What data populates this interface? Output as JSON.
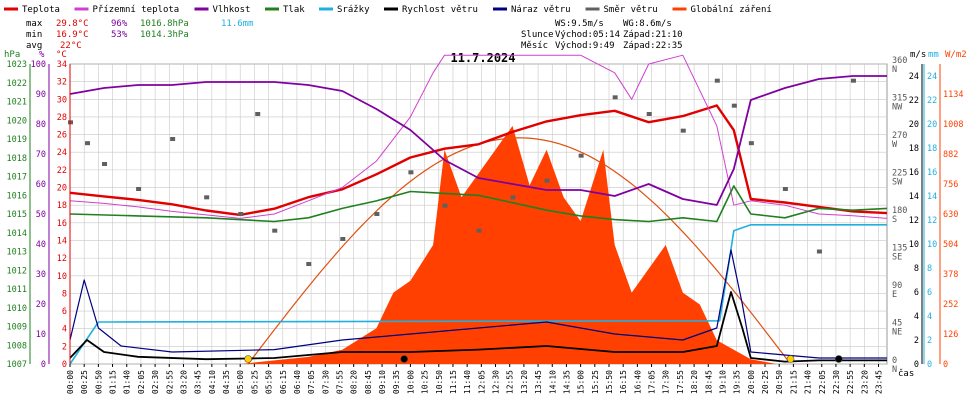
{
  "legend": [
    {
      "label": "Teplota",
      "color": "#e00000"
    },
    {
      "label": "Přízemní teplota",
      "color": "#d040d0"
    },
    {
      "label": "Vlhkost",
      "color": "#8000a0"
    },
    {
      "label": "Tlak",
      "color": "#208020"
    },
    {
      "label": "Srážky",
      "color": "#20b0e0"
    },
    {
      "label": "Rychlost větru",
      "color": "#000000"
    },
    {
      "label": "Náraz větru",
      "color": "#000080"
    },
    {
      "label": "Směr větru",
      "color": "#606060"
    },
    {
      "label": "Globální záření",
      "color": "#ff4000"
    }
  ],
  "stats": {
    "max_label": "max",
    "max_temp": "29.8°C",
    "max_hum": "96%",
    "max_press": "1016.8hPa",
    "max_rain": "11.6mm",
    "min_label": "min",
    "min_temp": "16.9°C",
    "min_hum": "53%",
    "min_press": "1014.3hPa",
    "avg_label": "avg",
    "avg_temp": "22°C"
  },
  "wind_stats": {
    "ws": "WS:9.5m/s",
    "wg": "WG:8.6m/s",
    "sun_label": "Slunce",
    "sun_rise": "Východ:05:14",
    "sun_set": "Západ:21:10",
    "moon_label": "Měsíc",
    "moon_rise": "Východ:9:49",
    "moon_set": "Západ:22:35"
  },
  "date": "11.7.2024",
  "axis_titles": {
    "hpa": "hPa",
    "pct": "%",
    "degc": "°C",
    "ms": "m/s",
    "mm": "mm",
    "wm2": "W/m2",
    "cas": "čas"
  },
  "colors": {
    "temp": "#e00000",
    "feels": "#d040d0",
    "hum": "#8000a0",
    "press": "#208020",
    "rain": "#20b0e0",
    "wind": "#000000",
    "gust": "#000080",
    "dir": "#606060",
    "rad": "#ff4000",
    "radcurve": "#e05010",
    "grid": "#c8c8c8"
  },
  "chart_data": {
    "type": "line",
    "title": "11.7.2024",
    "x_start": "00:00",
    "x_end": "24:00",
    "xlabel": "čas",
    "x_tick_labels": [
      "00:00",
      "00:25",
      "00:50",
      "01:15",
      "01:40",
      "02:05",
      "02:30",
      "02:55",
      "03:20",
      "03:45",
      "04:10",
      "04:35",
      "05:00",
      "05:25",
      "05:50",
      "06:15",
      "06:40",
      "07:05",
      "07:30",
      "07:55",
      "08:20",
      "08:45",
      "09:10",
      "09:35",
      "10:00",
      "10:25",
      "10:50",
      "11:15",
      "11:40",
      "12:05",
      "12:30",
      "12:55",
      "13:20",
      "13:45",
      "14:10",
      "14:35",
      "15:00",
      "15:25",
      "15:50",
      "16:15",
      "16:40",
      "17:05",
      "17:30",
      "17:55",
      "18:20",
      "18:45",
      "19:10",
      "19:35",
      "20:00",
      "20:25",
      "20:50",
      "21:15",
      "21:40",
      "22:05",
      "22:30",
      "22:55",
      "23:20",
      "23:45"
    ],
    "axes": {
      "pressure_hpa": {
        "min": 1007,
        "max": 1023,
        "ticks": [
          1007,
          1008,
          1009,
          1010,
          1011,
          1012,
          1013,
          1014,
          1015,
          1016,
          1017,
          1018,
          1019,
          1020,
          1021,
          1022,
          1023
        ]
      },
      "humidity_pct": {
        "min": 0,
        "max": 100,
        "ticks": [
          0,
          10,
          20,
          30,
          40,
          50,
          60,
          70,
          80,
          90,
          100
        ]
      },
      "temperature_c": {
        "min": 0,
        "max": 34,
        "ticks": [
          0,
          2,
          4,
          6,
          8,
          10,
          12,
          14,
          16,
          18,
          20,
          22,
          24,
          26,
          28,
          30,
          32,
          34
        ]
      },
      "wind_direction": {
        "ticks": [
          "0 N",
          "45 NE",
          "90 E",
          "135 SE",
          "180 S",
          "225 SW",
          "270 W",
          "315 NW",
          "360 N"
        ]
      },
      "wind_ms": {
        "min": 0,
        "max": 25,
        "ticks": [
          0,
          2,
          4,
          6,
          8,
          10,
          12,
          14,
          16,
          18,
          20,
          22,
          24
        ]
      },
      "rain_mm": {
        "min": 0,
        "max": 25,
        "ticks": [
          0,
          2,
          4,
          6,
          8,
          10,
          12,
          14,
          16,
          18,
          20,
          22,
          24
        ]
      },
      "radiation_wm2": {
        "min": 0,
        "max": 1260,
        "ticks": [
          0,
          126,
          252,
          378,
          504,
          630,
          756,
          882,
          1008,
          1134
        ]
      }
    },
    "series": [
      {
        "name": "Teplota",
        "unit": "°C",
        "points": [
          [
            "00:00",
            19.4
          ],
          [
            "01:00",
            19
          ],
          [
            "02:00",
            18.6
          ],
          [
            "03:00",
            18.1
          ],
          [
            "04:00",
            17.4
          ],
          [
            "05:00",
            16.9
          ],
          [
            "06:00",
            17.6
          ],
          [
            "07:00",
            18.9
          ],
          [
            "08:00",
            19.8
          ],
          [
            "09:00",
            21.5
          ],
          [
            "10:00",
            23.4
          ],
          [
            "11:00",
            24.4
          ],
          [
            "12:00",
            24.9
          ],
          [
            "13:00",
            26.3
          ],
          [
            "14:00",
            27.5
          ],
          [
            "15:00",
            28.2
          ],
          [
            "16:00",
            28.7
          ],
          [
            "17:00",
            27.4
          ],
          [
            "18:00",
            28.1
          ],
          [
            "19:00",
            29.3
          ],
          [
            "19:30",
            26.5
          ],
          [
            "20:00",
            18.7
          ],
          [
            "21:00",
            18.3
          ],
          [
            "22:00",
            17.8
          ],
          [
            "23:00",
            17.3
          ],
          [
            "24:00",
            17.1
          ]
        ]
      },
      {
        "name": "Přízemní teplota",
        "unit": "°C",
        "points": [
          [
            "00:00",
            18.5
          ],
          [
            "01:00",
            18.2
          ],
          [
            "02:00",
            17.8
          ],
          [
            "03:00",
            17.3
          ],
          [
            "04:00",
            16.9
          ],
          [
            "05:00",
            16.5
          ],
          [
            "06:00",
            17
          ],
          [
            "07:00",
            18.5
          ],
          [
            "08:00",
            20
          ],
          [
            "09:00",
            23
          ],
          [
            "10:00",
            28
          ],
          [
            "10:40",
            33
          ],
          [
            "11:00",
            35
          ],
          [
            "13:00",
            35
          ],
          [
            "14:00",
            35
          ],
          [
            "15:00",
            35
          ],
          [
            "16:00",
            33
          ],
          [
            "16:30",
            30
          ],
          [
            "17:00",
            34
          ],
          [
            "18:00",
            35
          ],
          [
            "19:00",
            27
          ],
          [
            "19:30",
            18
          ],
          [
            "20:00",
            18.5
          ],
          [
            "21:00",
            18
          ],
          [
            "22:00",
            17
          ],
          [
            "23:00",
            16.8
          ],
          [
            "24:00",
            16.5
          ]
        ]
      },
      {
        "name": "Vlhkost",
        "unit": "%",
        "points": [
          [
            "00:00",
            90
          ],
          [
            "01:00",
            92
          ],
          [
            "02:00",
            93
          ],
          [
            "03:00",
            93
          ],
          [
            "04:00",
            94
          ],
          [
            "05:00",
            94
          ],
          [
            "06:00",
            94
          ],
          [
            "07:00",
            93
          ],
          [
            "08:00",
            91
          ],
          [
            "09:00",
            85
          ],
          [
            "10:00",
            78
          ],
          [
            "11:00",
            68
          ],
          [
            "12:00",
            62
          ],
          [
            "13:00",
            60
          ],
          [
            "14:00",
            58
          ],
          [
            "15:00",
            58
          ],
          [
            "16:00",
            56
          ],
          [
            "17:00",
            60
          ],
          [
            "18:00",
            55
          ],
          [
            "19:00",
            53
          ],
          [
            "19:30",
            65
          ],
          [
            "20:00",
            88
          ],
          [
            "21:00",
            92
          ],
          [
            "22:00",
            95
          ],
          [
            "23:00",
            96
          ],
          [
            "24:00",
            96
          ]
        ]
      },
      {
        "name": "Tlak",
        "unit": "hPa",
        "points": [
          [
            "00:00",
            1015
          ],
          [
            "02:00",
            1014.9
          ],
          [
            "04:00",
            1014.8
          ],
          [
            "06:00",
            1014.6
          ],
          [
            "07:00",
            1014.8
          ],
          [
            "08:00",
            1015.3
          ],
          [
            "09:00",
            1015.7
          ],
          [
            "10:00",
            1016.2
          ],
          [
            "11:00",
            1016.1
          ],
          [
            "12:00",
            1016
          ],
          [
            "13:00",
            1015.6
          ],
          [
            "14:00",
            1015.2
          ],
          [
            "15:00",
            1014.9
          ],
          [
            "16:00",
            1014.7
          ],
          [
            "17:00",
            1014.6
          ],
          [
            "18:00",
            1014.8
          ],
          [
            "19:00",
            1014.6
          ],
          [
            "19:30",
            1016.5
          ],
          [
            "20:00",
            1015
          ],
          [
            "21:00",
            1014.8
          ],
          [
            "22:00",
            1015.3
          ],
          [
            "23:00",
            1015.2
          ],
          [
            "24:00",
            1015.3
          ]
        ]
      },
      {
        "name": "Srážky",
        "unit": "mm",
        "points": [
          [
            "00:00",
            0
          ],
          [
            "00:50",
            3.5
          ],
          [
            "01:10",
            3.5
          ],
          [
            "19:05",
            3.6
          ],
          [
            "19:20",
            8
          ],
          [
            "19:30",
            11.1
          ],
          [
            "20:00",
            11.6
          ],
          [
            "24:00",
            11.6
          ]
        ]
      },
      {
        "name": "Rychlost větru",
        "unit": "m/s",
        "points": [
          [
            "00:00",
            0.5
          ],
          [
            "00:30",
            2
          ],
          [
            "01:00",
            1
          ],
          [
            "02:00",
            0.6
          ],
          [
            "04:00",
            0.4
          ],
          [
            "06:00",
            0.5
          ],
          [
            "08:00",
            1
          ],
          [
            "10:00",
            1
          ],
          [
            "12:00",
            1.2
          ],
          [
            "14:00",
            1.5
          ],
          [
            "16:00",
            1
          ],
          [
            "18:00",
            1
          ],
          [
            "19:00",
            1.5
          ],
          [
            "19:25",
            6
          ],
          [
            "19:45",
            3
          ],
          [
            "20:00",
            0.5
          ],
          [
            "21:00",
            0.2
          ],
          [
            "22:00",
            0.3
          ],
          [
            "24:00",
            0.3
          ]
        ]
      },
      {
        "name": "Náraz větru",
        "unit": "m/s",
        "points": [
          [
            "00:00",
            2
          ],
          [
            "00:25",
            7
          ],
          [
            "00:50",
            3
          ],
          [
            "01:30",
            1.5
          ],
          [
            "03:00",
            1
          ],
          [
            "06:00",
            1.2
          ],
          [
            "08:00",
            2
          ],
          [
            "10:00",
            2.5
          ],
          [
            "12:00",
            3
          ],
          [
            "14:00",
            3.5
          ],
          [
            "16:00",
            2.5
          ],
          [
            "18:00",
            2
          ],
          [
            "19:00",
            3
          ],
          [
            "19:25",
            9.5
          ],
          [
            "19:45",
            5
          ],
          [
            "20:00",
            1
          ],
          [
            "22:00",
            0.5
          ],
          [
            "24:00",
            0.5
          ]
        ]
      },
      {
        "name": "Globální záření",
        "unit": "W/m2",
        "points": [
          [
            "05:00",
            0
          ],
          [
            "07:00",
            30
          ],
          [
            "08:00",
            60
          ],
          [
            "09:00",
            150
          ],
          [
            "09:30",
            300
          ],
          [
            "10:00",
            350
          ],
          [
            "10:40",
            500
          ],
          [
            "11:00",
            900
          ],
          [
            "11:30",
            700
          ],
          [
            "12:00",
            800
          ],
          [
            "12:30",
            900
          ],
          [
            "13:00",
            1000
          ],
          [
            "13:30",
            750
          ],
          [
            "14:00",
            900
          ],
          [
            "14:30",
            700
          ],
          [
            "15:00",
            600
          ],
          [
            "15:40",
            900
          ],
          [
            "16:00",
            500
          ],
          [
            "16:30",
            300
          ],
          [
            "17:00",
            400
          ],
          [
            "17:30",
            500
          ],
          [
            "18:00",
            300
          ],
          [
            "18:30",
            250
          ],
          [
            "19:00",
            100
          ],
          [
            "20:00",
            20
          ],
          [
            "20:45",
            0
          ]
        ]
      },
      {
        "name": "Směr větru",
        "unit": "°",
        "points": [
          [
            "00:00",
            290
          ],
          [
            "00:30",
            265
          ],
          [
            "01:00",
            240
          ],
          [
            "02:00",
            210
          ],
          [
            "03:00",
            270
          ],
          [
            "04:00",
            200
          ],
          [
            "05:00",
            180
          ],
          [
            "05:30",
            300
          ],
          [
            "06:00",
            160
          ],
          [
            "07:00",
            120
          ],
          [
            "08:00",
            150
          ],
          [
            "09:00",
            180
          ],
          [
            "10:00",
            230
          ],
          [
            "11:00",
            190
          ],
          [
            "12:00",
            160
          ],
          [
            "13:00",
            200
          ],
          [
            "14:00",
            220
          ],
          [
            "15:00",
            250
          ],
          [
            "16:00",
            320
          ],
          [
            "17:00",
            300
          ],
          [
            "18:00",
            280
          ],
          [
            "19:00",
            340
          ],
          [
            "19:30",
            310
          ],
          [
            "20:00",
            265
          ],
          [
            "21:00",
            210
          ],
          [
            "22:00",
            135
          ],
          [
            "23:00",
            340
          ]
        ]
      }
    ]
  }
}
